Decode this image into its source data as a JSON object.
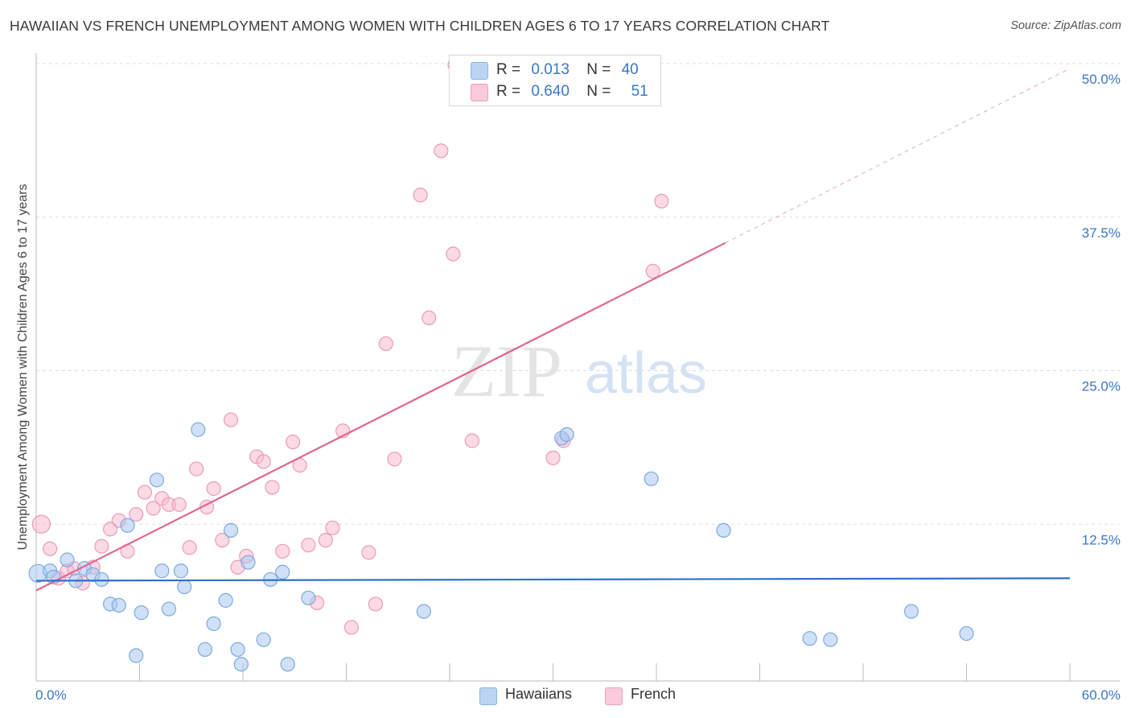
{
  "title": "HAWAIIAN VS FRENCH UNEMPLOYMENT AMONG WOMEN WITH CHILDREN AGES 6 TO 17 YEARS CORRELATION CHART",
  "source": "Source: ZipAtlas.com",
  "watermark": {
    "zip": "ZIP",
    "atlas": "atlas"
  },
  "legend": {
    "rows": [
      {
        "r_label": "R =",
        "r_value": "0.013",
        "n_label": "N =",
        "n_value": "40"
      },
      {
        "r_label": "R =",
        "r_value": "0.640",
        "n_label": "N =",
        "n_value": "51"
      }
    ]
  },
  "colors": {
    "hawaiians_fill": "#a9c8f0",
    "hawaiians_stroke": "#7aaae0",
    "hawaiians_line": "#2f6fcc",
    "french_fill": "#f7bcd0",
    "french_stroke": "#ec9ab6",
    "french_line": "#e06690",
    "tick_label": "#3a76c8",
    "grid": "#dddddd"
  },
  "chart_data": {
    "type": "scatter",
    "title": "HAWAIIAN VS FRENCH UNEMPLOYMENT AMONG WOMEN WITH CHILDREN AGES 6 TO 17 YEARS CORRELATION CHART",
    "xlabel": "",
    "ylabel": "Unemployment Among Women with Children Ages 6 to 17 years",
    "xlim": [
      0,
      60
    ],
    "ylim": [
      0,
      50
    ],
    "x_tick_labels": [
      "0.0%",
      "60.0%"
    ],
    "y_ticks": [
      12.5,
      25.0,
      37.5,
      50.0
    ],
    "y_tick_labels": [
      "12.5%",
      "25.0%",
      "37.5%",
      "50.0%"
    ],
    "grid": true,
    "legend_position": "top-center",
    "series": [
      {
        "name": "Hawaiians",
        "r": 0.013,
        "n": 40,
        "trend": {
          "x": [
            0,
            60
          ],
          "y": [
            7.9,
            8.1
          ]
        },
        "points": [
          [
            0.1,
            8.5
          ],
          [
            0.8,
            8.7
          ],
          [
            1.0,
            8.2
          ],
          [
            1.8,
            9.6
          ],
          [
            2.3,
            7.9
          ],
          [
            2.8,
            8.9
          ],
          [
            3.3,
            8.4
          ],
          [
            3.8,
            8.0
          ],
          [
            4.3,
            6.0
          ],
          [
            4.8,
            5.9
          ],
          [
            5.3,
            12.4
          ],
          [
            6.1,
            5.3
          ],
          [
            7.0,
            16.1
          ],
          [
            7.3,
            8.7
          ],
          [
            7.7,
            5.6
          ],
          [
            8.4,
            8.7
          ],
          [
            8.6,
            7.4
          ],
          [
            9.4,
            20.2
          ],
          [
            9.8,
            2.3
          ],
          [
            10.3,
            4.4
          ],
          [
            11.0,
            6.3
          ],
          [
            11.3,
            12.0
          ],
          [
            11.7,
            2.3
          ],
          [
            11.9,
            1.1
          ],
          [
            12.3,
            9.4
          ],
          [
            13.2,
            3.1
          ],
          [
            13.6,
            8.0
          ],
          [
            14.3,
            8.6
          ],
          [
            14.6,
            1.1
          ],
          [
            15.8,
            6.5
          ],
          [
            5.8,
            1.8
          ],
          [
            22.5,
            5.4
          ],
          [
            30.5,
            19.5
          ],
          [
            30.8,
            19.8
          ],
          [
            35.7,
            16.2
          ],
          [
            39.9,
            12.0
          ],
          [
            44.9,
            3.2
          ],
          [
            46.1,
            3.1
          ],
          [
            50.8,
            5.4
          ],
          [
            54.0,
            3.6
          ]
        ]
      },
      {
        "name": "French",
        "r": 0.64,
        "n": 51,
        "trend": {
          "x": [
            0,
            40
          ],
          "y": [
            7.1,
            35.4
          ]
        },
        "trend_extension": {
          "x": [
            40,
            60
          ],
          "y": [
            35.4,
            49.6
          ]
        },
        "points": [
          [
            0.3,
            12.5
          ],
          [
            0.8,
            10.5
          ],
          [
            1.3,
            8.1
          ],
          [
            1.8,
            8.7
          ],
          [
            2.2,
            8.9
          ],
          [
            2.7,
            7.7
          ],
          [
            3.3,
            9.0
          ],
          [
            3.8,
            10.7
          ],
          [
            4.3,
            12.1
          ],
          [
            4.8,
            12.8
          ],
          [
            5.3,
            10.3
          ],
          [
            5.8,
            13.3
          ],
          [
            6.3,
            15.1
          ],
          [
            6.8,
            13.8
          ],
          [
            7.3,
            14.6
          ],
          [
            7.7,
            14.1
          ],
          [
            8.3,
            14.1
          ],
          [
            8.9,
            10.6
          ],
          [
            9.3,
            17.0
          ],
          [
            9.9,
            13.9
          ],
          [
            10.3,
            15.4
          ],
          [
            10.8,
            11.2
          ],
          [
            11.3,
            21.0
          ],
          [
            11.7,
            9.0
          ],
          [
            12.2,
            9.9
          ],
          [
            12.8,
            18.0
          ],
          [
            13.2,
            17.6
          ],
          [
            13.7,
            15.5
          ],
          [
            14.3,
            10.3
          ],
          [
            14.9,
            19.2
          ],
          [
            15.3,
            17.3
          ],
          [
            15.8,
            10.8
          ],
          [
            16.3,
            6.1
          ],
          [
            16.8,
            11.2
          ],
          [
            17.2,
            12.2
          ],
          [
            17.8,
            20.1
          ],
          [
            18.3,
            4.1
          ],
          [
            19.3,
            10.2
          ],
          [
            19.7,
            6.0
          ],
          [
            20.3,
            27.2
          ],
          [
            20.8,
            17.8
          ],
          [
            22.3,
            39.3
          ],
          [
            22.8,
            29.3
          ],
          [
            23.5,
            42.9
          ],
          [
            24.2,
            34.5
          ],
          [
            25.3,
            19.3
          ],
          [
            30.0,
            17.9
          ],
          [
            30.6,
            19.3
          ],
          [
            35.8,
            33.1
          ],
          [
            36.3,
            38.8
          ],
          [
            24.3,
            49.9
          ]
        ]
      }
    ]
  },
  "bottom_legend": [
    "Hawaiians",
    "French"
  ]
}
